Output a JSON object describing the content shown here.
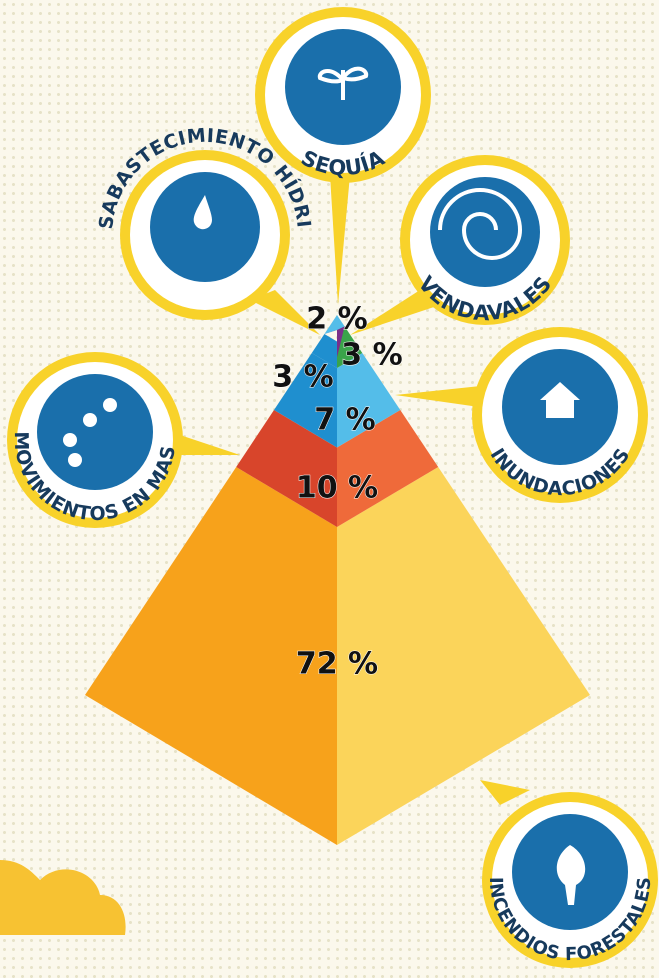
{
  "callouts": [
    "SEQUÍA",
    "DESABASTECIMIENTO HÍDRICO",
    "VENDAVALES",
    "MOVIMIENTOS EN MASA",
    "INUNDACIONES",
    "INCENDIOS FORESTALES"
  ],
  "percentages": [
    "2 %",
    "3 %",
    "3 %",
    "7 %",
    "10 %",
    "72 %"
  ]
}
